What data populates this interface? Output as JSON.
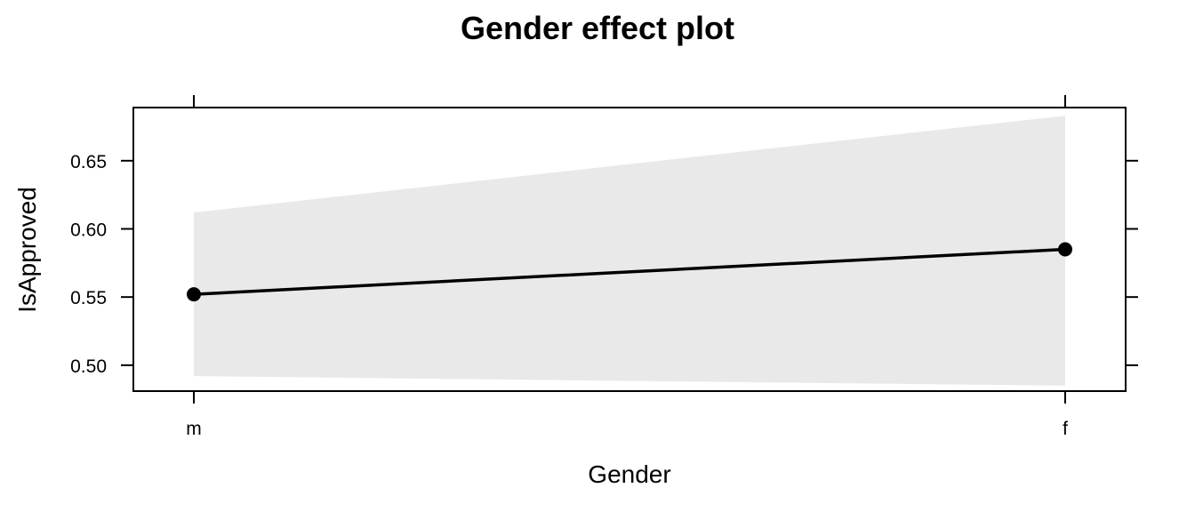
{
  "chart_data": {
    "type": "line",
    "title": "Gender effect plot",
    "xlabel": "Gender",
    "ylabel": "IsApproved",
    "categories": [
      "m",
      "f"
    ],
    "series": [
      {
        "values": [
          0.552,
          0.585
        ],
        "lower": [
          0.492,
          0.485
        ],
        "upper": [
          0.612,
          0.683
        ]
      }
    ],
    "ylim": [
      0.481,
      0.689
    ],
    "yticks": [
      0.5,
      0.55,
      0.6,
      0.65
    ],
    "ytick_labels": [
      "0.50",
      "0.55",
      "0.60",
      "0.65"
    ],
    "grid": false,
    "legend": "none",
    "colors": {
      "line": "#000000",
      "band": "#e9e9e9",
      "frame": "#000000"
    }
  }
}
